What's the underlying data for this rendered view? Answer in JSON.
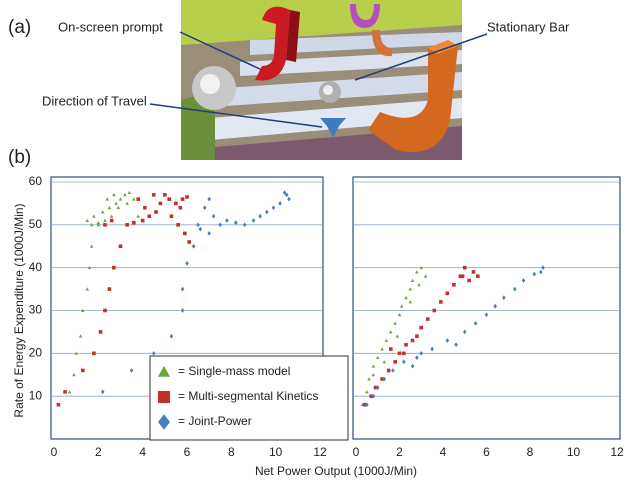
{
  "panel_a": {
    "label": "(a)",
    "annotations": [
      "On-screen prompt",
      "Stationary Bar",
      "Direction of Travel"
    ]
  },
  "panel_b": {
    "label": "(b)"
  },
  "chart_data": [
    {
      "type": "scatter",
      "ylabel": "Rate of Energy Expenditure (1000J/Min)",
      "xlabel": "Net Power Output (1000J/Min)",
      "xlim": [
        0,
        12
      ],
      "ylim": [
        0,
        60
      ],
      "xticks": [
        0,
        2,
        4,
        6,
        8,
        10,
        12
      ],
      "yticks": [
        10,
        20,
        30,
        40,
        50,
        60
      ],
      "ytick_labels": true,
      "grid": true,
      "legend": "bottom-center",
      "series": [
        {
          "name": "= Single-mass model",
          "color": "#6aa83b",
          "marker": "triangle",
          "x": [
            0.7,
            0.9,
            1.0,
            1.2,
            1.3,
            1.5,
            1.6,
            1.7,
            2.0,
            1.5,
            1.8,
            2.2,
            2.5,
            2.8,
            3.0,
            3.2,
            3.4,
            3.6,
            3.3,
            2.9,
            2.6,
            2.3,
            2.0,
            1.7,
            3.8,
            2.4,
            2.7
          ],
          "values": [
            11,
            15,
            20,
            24,
            30,
            35,
            40,
            45,
            50,
            51,
            52,
            53,
            54,
            55,
            56,
            57,
            57.5,
            56,
            55,
            54,
            52,
            51,
            50.5,
            50,
            52,
            56,
            57
          ]
        },
        {
          "name": "= Multi-segmental  Kinetics",
          "color": "#c0312b",
          "marker": "square",
          "x": [
            0.2,
            0.5,
            1.3,
            1.8,
            2.1,
            2.3,
            2.5,
            2.7,
            3.0,
            3.3,
            2.3,
            2.6,
            3.6,
            4.0,
            4.3,
            4.6,
            4.8,
            5.0,
            5.2,
            5.5,
            5.8,
            6.0,
            5.7,
            5.3,
            4.1,
            3.8,
            4.5,
            5.6,
            5.9,
            6.1
          ],
          "values": [
            8,
            11,
            16,
            20,
            25,
            30,
            35,
            40,
            45,
            50,
            50,
            51,
            50.5,
            51,
            52,
            53,
            55,
            57,
            56,
            55,
            56,
            56.5,
            54,
            52,
            54,
            56,
            57,
            50,
            48,
            46
          ]
        },
        {
          "name": "= Joint-Power",
          "color": "#4a7ebf",
          "marker": "diamond",
          "x": [
            2.2,
            3.5,
            4.5,
            5.3,
            5.8,
            5.8,
            6.0,
            6.3,
            6.5,
            6.8,
            7.0,
            7.2,
            7.5,
            7.8,
            8.2,
            8.6,
            9.0,
            9.3,
            9.6,
            9.9,
            10.2,
            10.5,
            10.6,
            10.4,
            7.0,
            6.6
          ],
          "values": [
            11,
            16,
            20,
            24,
            30,
            35,
            41,
            45,
            50,
            54,
            56,
            52,
            50,
            51,
            50.5,
            50,
            51,
            52,
            53,
            54,
            55,
            57,
            56,
            57.5,
            48,
            49
          ]
        }
      ]
    },
    {
      "type": "scatter",
      "xlim": [
        0,
        12
      ],
      "ylim": [
        0,
        60
      ],
      "xticks": [
        0,
        2,
        4,
        6,
        8,
        10,
        12
      ],
      "yticks": [
        10,
        20,
        30,
        40,
        50,
        60
      ],
      "ytick_labels": false,
      "grid": true,
      "series": [
        {
          "color": "#6aa83b",
          "marker": "triangle",
          "x": [
            0.3,
            0.5,
            0.6,
            0.8,
            1.0,
            1.2,
            1.4,
            1.6,
            1.8,
            2.0,
            2.1,
            2.3,
            2.5,
            2.6,
            2.8,
            3.0,
            3.2,
            2.9,
            2.5,
            1.9,
            1.3,
            0.8
          ],
          "values": [
            8,
            11,
            14,
            17,
            19,
            21,
            23,
            25,
            27,
            29,
            31,
            33,
            35,
            37,
            39,
            40,
            38,
            36,
            32,
            24,
            18,
            15
          ]
        },
        {
          "color": "#c0312b",
          "marker": "square",
          "x": [
            0.4,
            0.7,
            0.9,
            1.2,
            1.5,
            1.8,
            2.0,
            2.3,
            2.2,
            2.8,
            3.0,
            3.3,
            3.6,
            3.9,
            4.2,
            4.5,
            4.8,
            5.0,
            5.4,
            5.6,
            5.2,
            4.9,
            2.6,
            1.6
          ],
          "values": [
            8,
            10,
            12,
            14,
            16,
            18,
            20,
            22,
            20,
            24,
            26,
            28,
            30,
            32,
            34,
            36,
            38,
            40,
            39,
            38,
            37,
            38,
            23,
            21
          ]
        },
        {
          "color": "#4a7ebf",
          "marker": "diamond",
          "x": [
            0.5,
            0.8,
            1.0,
            1.3,
            1.7,
            2.2,
            2.8,
            3.5,
            4.2,
            5.0,
            5.5,
            6.0,
            6.4,
            6.8,
            7.3,
            7.7,
            8.2,
            8.6,
            8.5,
            2.6,
            3.0,
            4.6
          ],
          "values": [
            8,
            10,
            12,
            14,
            16,
            18,
            19,
            21,
            23,
            25,
            27,
            29,
            31,
            33,
            35,
            37,
            38.5,
            40,
            39,
            17,
            20,
            22
          ]
        }
      ]
    }
  ]
}
